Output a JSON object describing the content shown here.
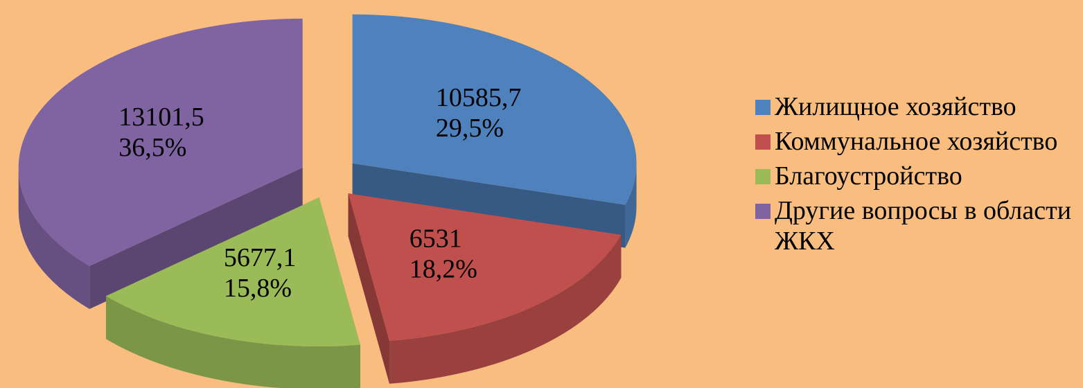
{
  "chart_data": {
    "type": "pie3d",
    "categories": [
      "Жилищное хозяйство",
      "Коммунальное хозяйство",
      "Благоустройство",
      "Другие вопросы в области ЖКХ"
    ],
    "values": [
      10585.7,
      6531,
      5677.1,
      13101.5
    ],
    "value_labels": [
      "10585,7",
      "6531",
      "5677,1",
      "13101,5"
    ],
    "percents": [
      29.5,
      18.2,
      15.8,
      36.5
    ],
    "percent_labels": [
      "29,5%",
      "18,2%",
      "15,8%",
      "36,5%"
    ],
    "colors": [
      "#4f81bd",
      "#c0504d",
      "#9bbb59",
      "#8064a2"
    ],
    "legend": "right"
  }
}
